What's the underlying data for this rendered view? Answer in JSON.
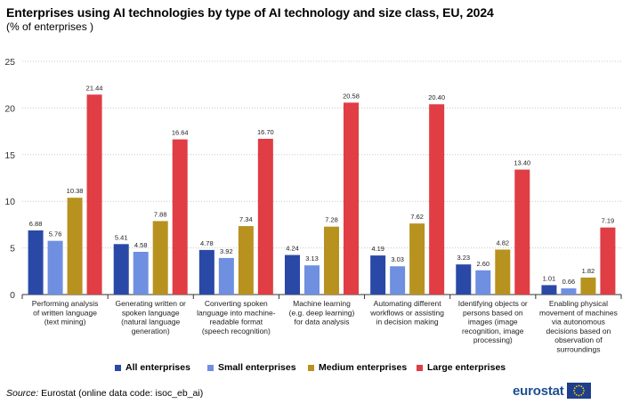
{
  "title": "Enterprises using AI technologies by type of AI technology and size class, EU, 2024",
  "subtitle": "(% of enterprises )",
  "source_label": "Source:",
  "source_text": " Eurostat (online data code: isoc_eb_ai)",
  "logo_text": "eurostat",
  "colors": {
    "all": "#2a49a7",
    "small": "#6f8fe0",
    "medium": "#b8921f",
    "large": "#e03d44",
    "grid": "#c8c8c8",
    "flag": "#1f3f8c",
    "stars": "#ffd200"
  },
  "chart_data": {
    "type": "bar",
    "title": "Enterprises using AI technologies by type of AI technology and size class, EU, 2024",
    "ylabel": "% of enterprises",
    "ylim": [
      0,
      25
    ],
    "yticks": [
      "0",
      "5",
      "10",
      "15",
      "20",
      "25"
    ],
    "grid": true,
    "legend_position": "bottom",
    "categories": [
      [
        "Performing analysis",
        "of written language",
        "(text mining)"
      ],
      [
        "Generating written or",
        "spoken language",
        "(natural language",
        "generation)"
      ],
      [
        "Converting spoken",
        "language into machine-",
        "readable format",
        "(speech recognition)"
      ],
      [
        "Machine learning",
        "(e.g. deep learning)",
        "for data analysis"
      ],
      [
        "Automating different",
        "workflows or assisting",
        "in decision making"
      ],
      [
        "Identifying objects or",
        "persons based on",
        "images (image",
        "recognition, image",
        "processing)"
      ],
      [
        "Enabling physical",
        "movement of machines",
        "via autonomous",
        "decisions based on",
        "observation of",
        "surroundings"
      ]
    ],
    "series": [
      {
        "name": "All enterprises",
        "color_key": "all",
        "values": [
          6.88,
          5.41,
          4.78,
          4.24,
          4.19,
          3.23,
          1.01
        ],
        "labels": [
          "6.88",
          "5.41",
          "4.78",
          "4.24",
          "4.19",
          "3.23",
          "1.01"
        ]
      },
      {
        "name": "Small enterprises",
        "color_key": "small",
        "values": [
          5.76,
          4.58,
          3.92,
          3.13,
          3.03,
          2.6,
          0.66
        ],
        "labels": [
          "5.76",
          "4.58",
          "3.92",
          "3.13",
          "3.03",
          "2.60",
          "0.66"
        ]
      },
      {
        "name": "Medium enterprises",
        "color_key": "medium",
        "values": [
          10.38,
          7.88,
          7.34,
          7.28,
          7.62,
          4.82,
          1.82
        ],
        "labels": [
          "10.38",
          "7.88",
          "7.34",
          "7.28",
          "7.62",
          "4.82",
          "1.82"
        ]
      },
      {
        "name": "Large enterprises",
        "color_key": "large",
        "values": [
          21.44,
          16.64,
          16.7,
          20.58,
          20.4,
          13.4,
          7.19
        ],
        "labels": [
          "21.44",
          "16.64",
          "16.70",
          "20.58",
          "20.40",
          "13.40",
          "7.19"
        ]
      }
    ]
  }
}
